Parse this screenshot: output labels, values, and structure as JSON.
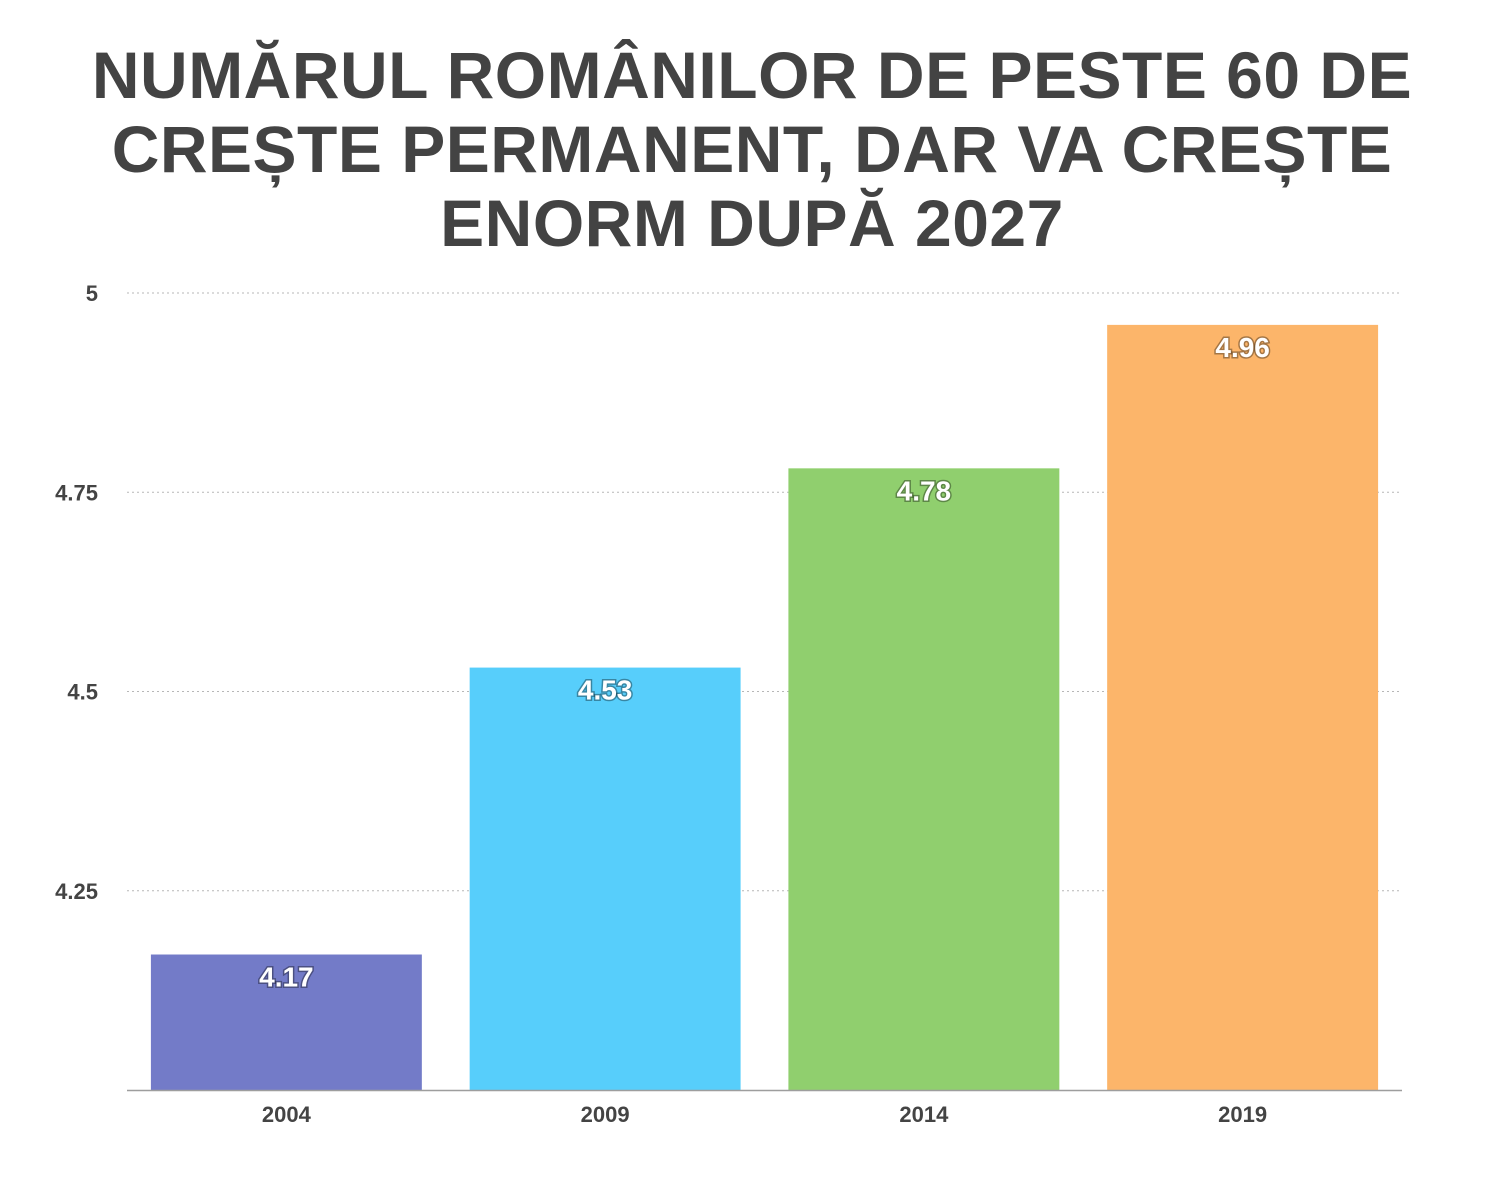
{
  "chart_data": {
    "type": "bar",
    "title_lines": [
      "NUMĂRUL ROMÂNILOR DE PESTE 60 DE",
      "CREȘTE PERMANENT, DAR VA CREȘTE",
      "ENORM DUPĂ 2027"
    ],
    "categories": [
      "2004",
      "2009",
      "2014",
      "2019"
    ],
    "values": [
      4.17,
      4.53,
      4.78,
      4.96
    ],
    "value_labels": [
      "4.17",
      "4.53",
      "4.78",
      "4.96"
    ],
    "colors": [
      "#737bc8",
      "#57cefb",
      "#90cf6e",
      "#fcb56a"
    ],
    "xlabel": "",
    "ylabel": "",
    "ylim": [
      4.0,
      5.0
    ],
    "yticks": [
      4.25,
      4.5,
      4.75,
      5
    ],
    "ytick_labels": [
      "4.25",
      "4.5",
      "4.75",
      "5"
    ],
    "grid": true,
    "grid_style": "dotted",
    "legend": "none"
  }
}
